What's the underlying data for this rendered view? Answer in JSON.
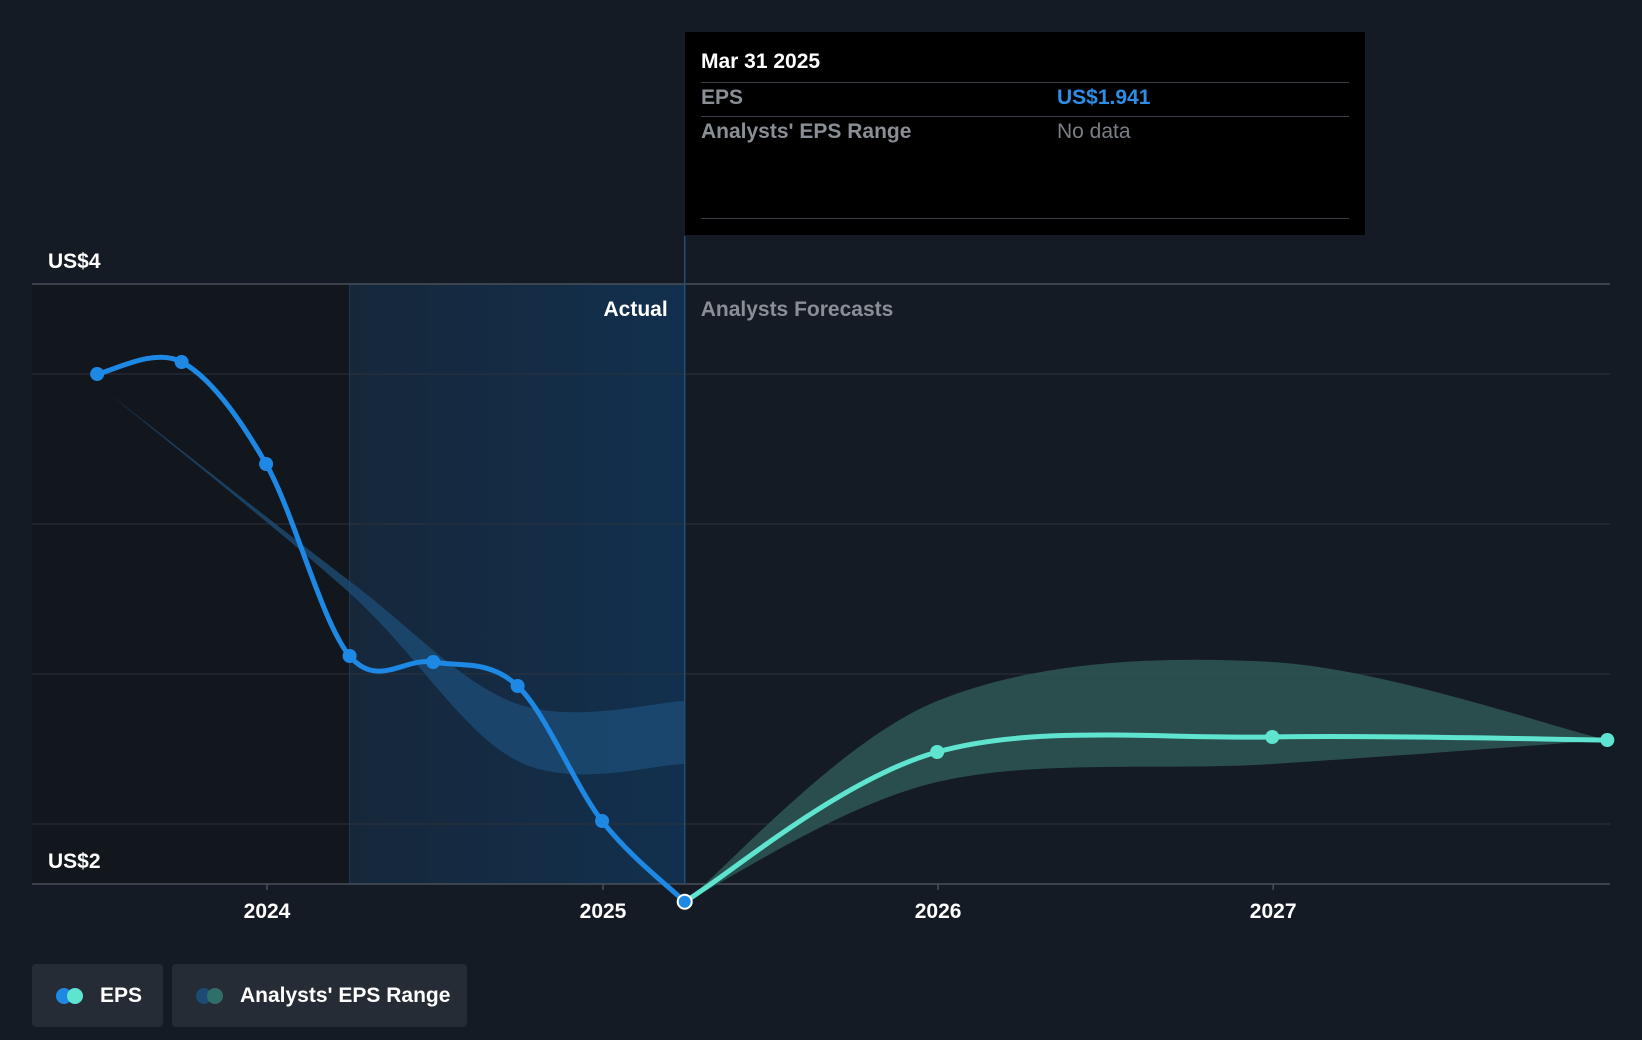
{
  "chart_data": {
    "type": "line",
    "y_axis": {
      "min": 2,
      "max": 4,
      "labels": [
        "US$4",
        "US$2"
      ]
    },
    "x_axis": {
      "ticks": [
        "2024",
        "2025",
        "2026",
        "2027"
      ]
    },
    "sections": {
      "actual": "Actual",
      "forecast": "Analysts Forecasts"
    },
    "series": [
      {
        "name": "EPS",
        "color": "#1e88e5",
        "points": [
          {
            "x": "2023-06-30",
            "y": 3.7
          },
          {
            "x": "2023-09-30",
            "y": 3.74
          },
          {
            "x": "2023-12-31",
            "y": 3.4
          },
          {
            "x": "2024-03-31",
            "y": 2.76
          },
          {
            "x": "2024-06-30",
            "y": 2.74
          },
          {
            "x": "2024-09-30",
            "y": 2.66
          },
          {
            "x": "2024-12-31",
            "y": 2.21
          },
          {
            "x": "2025-03-31",
            "y": 1.941
          }
        ]
      },
      {
        "name": "EPS",
        "color": "#5ee4cf",
        "points": [
          {
            "x": "2025-03-31",
            "y": 1.941
          },
          {
            "x": "2025-12-31",
            "y": 2.44
          },
          {
            "x": "2026-12-31",
            "y": 2.49
          },
          {
            "x": "2027-12-31",
            "y": 2.48
          }
        ]
      }
    ],
    "ranges": [
      {
        "name": "Analysts' EPS Range",
        "color": "#1d4b74",
        "points": [
          {
            "x": "2023-07-15",
            "y_low": 3.63,
            "y_high": 3.63
          },
          {
            "x": "2024-03-31",
            "y_low": 2.97,
            "y_high": 3.01
          },
          {
            "x": "2024-09-30",
            "y_low": 2.41,
            "y_high": 2.6
          },
          {
            "x": "2025-03-31",
            "y_low": 2.4,
            "y_high": 2.61
          }
        ]
      },
      {
        "name": "Analysts' EPS Range",
        "color": "#2f5b57",
        "points": [
          {
            "x": "2025-03-31",
            "y_low": 1.94,
            "y_high": 1.94
          },
          {
            "x": "2025-12-31",
            "y_low": 2.34,
            "y_high": 2.61
          },
          {
            "x": "2026-12-31",
            "y_low": 2.4,
            "y_high": 2.74
          },
          {
            "x": "2027-12-31",
            "y_low": 2.48,
            "y_high": 2.48
          }
        ]
      }
    ],
    "tooltip": {
      "date": "Mar 31 2025",
      "rows": [
        {
          "label": "EPS",
          "value": "US$1.941",
          "color": "#2d8ee6"
        },
        {
          "label": "Analysts' EPS Range",
          "value": "No data",
          "color": "#7a7f86"
        }
      ]
    },
    "legend": [
      {
        "label": "EPS",
        "colors": [
          "#1e88e5",
          "#5ee4cf"
        ]
      },
      {
        "label": "Analysts' EPS Range",
        "colors": [
          "#1d4b74",
          "#2f6f68"
        ]
      }
    ]
  }
}
